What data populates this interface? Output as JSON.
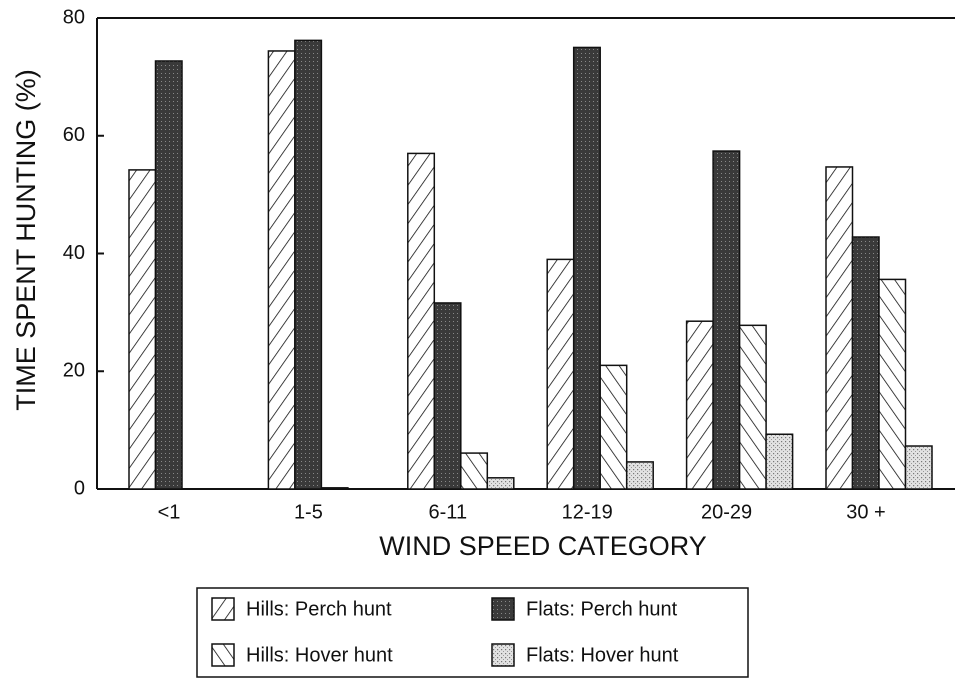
{
  "chart_data": {
    "type": "bar",
    "xlabel": "WIND SPEED CATEGORY",
    "ylabel": "TIME SPENT HUNTING (%)",
    "categories": [
      "<1",
      "1-5",
      "6-11",
      "12-19",
      "20-29",
      "30 +"
    ],
    "series": [
      {
        "name": "Hills: Perch hunt",
        "color": "#ffffff",
        "pattern": "forward-hatch",
        "values": [
          54.2,
          74.4,
          57,
          39,
          28.5,
          54.7
        ]
      },
      {
        "name": "Flats: Perch hunt",
        "color": "#3a3a3a",
        "pattern": "dark-stipple",
        "values": [
          72.7,
          76.2,
          31.6,
          75,
          57.4,
          42.8
        ]
      },
      {
        "name": "Hills: Hover hunt",
        "color": "#ffffff",
        "pattern": "back-hatch",
        "values": [
          0,
          0.2,
          6.1,
          21,
          27.8,
          35.6
        ]
      },
      {
        "name": "Flats: Hover hunt",
        "color": "#cfcfcf",
        "pattern": "light-stipple",
        "values": [
          0,
          0,
          1.9,
          4.6,
          9.3,
          7.3
        ]
      }
    ],
    "ylim": [
      0,
      80
    ],
    "yticks": [
      0,
      20,
      40,
      60,
      80
    ],
    "legend": "bottom"
  }
}
